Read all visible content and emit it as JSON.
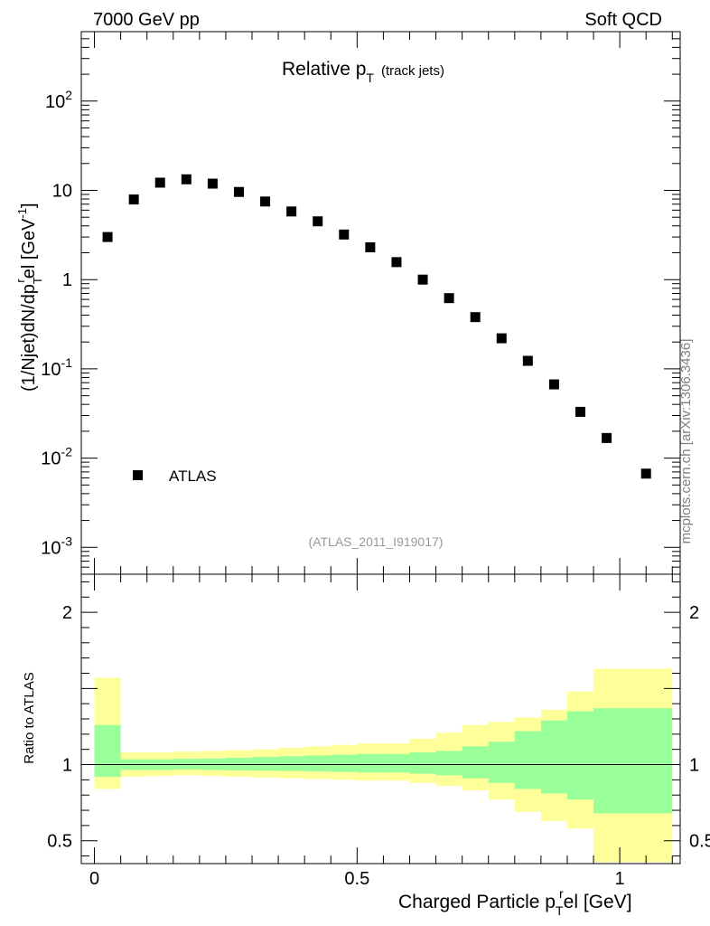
{
  "header": {
    "left": "7000 GeV pp",
    "right": "Soft QCD"
  },
  "side_label": "mcplots.cern.ch [arXiv:1306.3436]",
  "chart_data": [
    {
      "type": "scatter",
      "title_main": "Relative p",
      "title_sub": "T",
      "title_note": "(track jets)",
      "ylabel": "(1/Njet)dN/dp_T^rel [GeV^-1]",
      "ylabel_parts": {
        "a": "(1/Njet)dN/dp",
        "b": "T",
        "c": "r",
        "d": "el [GeV",
        "e": "-1",
        "f": "]"
      },
      "yscale": "log",
      "ylim": [
        0.0005,
        600
      ],
      "xlim": [
        -0.025,
        1.115
      ],
      "y_ticks": [
        {
          "value": 0.001,
          "base": "10",
          "exp": "-3"
        },
        {
          "value": 0.01,
          "base": "10",
          "exp": "-2"
        },
        {
          "value": 0.1,
          "base": "10",
          "exp": "-1"
        },
        {
          "value": 1,
          "base": "1",
          "exp": ""
        },
        {
          "value": 10,
          "base": "10",
          "exp": ""
        },
        {
          "value": 100,
          "base": "10",
          "exp": "2"
        }
      ],
      "legend": {
        "label": "ATLAS",
        "position": "bottom-left"
      },
      "analysis_id": "(ATLAS_2011_I919017)",
      "series": [
        {
          "name": "ATLAS",
          "x": [
            0.025,
            0.075,
            0.125,
            0.175,
            0.225,
            0.275,
            0.325,
            0.375,
            0.425,
            0.475,
            0.525,
            0.575,
            0.625,
            0.675,
            0.725,
            0.775,
            0.825,
            0.875,
            0.925,
            0.975,
            1.05
          ],
          "y": [
            3.0,
            7.9,
            12.2,
            13.3,
            11.9,
            9.6,
            7.5,
            5.8,
            4.5,
            3.2,
            2.3,
            1.57,
            1.0,
            0.62,
            0.38,
            0.22,
            0.123,
            0.067,
            0.033,
            0.0168,
            0.0067
          ]
        }
      ]
    },
    {
      "type": "area",
      "ylabel": "Ratio to ATLAS",
      "xlabel": "Charged Particle p_T^rel [GeV]",
      "xlabel_parts": {
        "a": "Charged Particle p",
        "b": "T",
        "c": "r",
        "d": "el [GeV]"
      },
      "ylim": [
        0.35,
        2.25
      ],
      "xlim": [
        -0.025,
        1.115
      ],
      "y_ticks": [
        {
          "value": 0.5,
          "label": "0.5"
        },
        {
          "value": 1,
          "label": "1"
        },
        {
          "value": 2,
          "label": "2"
        }
      ],
      "x_ticks": [
        {
          "value": 0,
          "label": "0"
        },
        {
          "value": 0.5,
          "label": "0.5"
        },
        {
          "value": 1,
          "label": "1"
        }
      ],
      "reference_line": 1,
      "bins": [
        0,
        0.05,
        0.1,
        0.15,
        0.2,
        0.25,
        0.3,
        0.35,
        0.4,
        0.45,
        0.5,
        0.55,
        0.6,
        0.65,
        0.7,
        0.75,
        0.8,
        0.85,
        0.9,
        0.95,
        1.0,
        1.1
      ],
      "bands": [
        {
          "name": "total uncertainty",
          "color": "#ffff99",
          "lo": [
            0.84,
            0.92,
            0.925,
            0.93,
            0.925,
            0.92,
            0.915,
            0.91,
            0.905,
            0.9,
            0.895,
            0.895,
            0.88,
            0.86,
            0.83,
            0.77,
            0.69,
            0.63,
            0.58,
            0.36,
            0.36
          ],
          "hi": [
            1.57,
            1.08,
            1.08,
            1.085,
            1.09,
            1.095,
            1.1,
            1.11,
            1.12,
            1.13,
            1.14,
            1.14,
            1.17,
            1.21,
            1.26,
            1.28,
            1.31,
            1.36,
            1.48,
            1.63,
            1.63
          ]
        },
        {
          "name": "stat. uncertainty",
          "color": "#99ff99",
          "lo": [
            0.92,
            0.965,
            0.965,
            0.968,
            0.965,
            0.962,
            0.96,
            0.958,
            0.955,
            0.952,
            0.948,
            0.948,
            0.94,
            0.93,
            0.91,
            0.88,
            0.84,
            0.81,
            0.77,
            0.68,
            0.68
          ],
          "hi": [
            1.26,
            1.035,
            1.035,
            1.038,
            1.04,
            1.045,
            1.05,
            1.055,
            1.06,
            1.065,
            1.07,
            1.07,
            1.08,
            1.09,
            1.12,
            1.15,
            1.22,
            1.29,
            1.35,
            1.37,
            1.37
          ]
        }
      ]
    }
  ]
}
